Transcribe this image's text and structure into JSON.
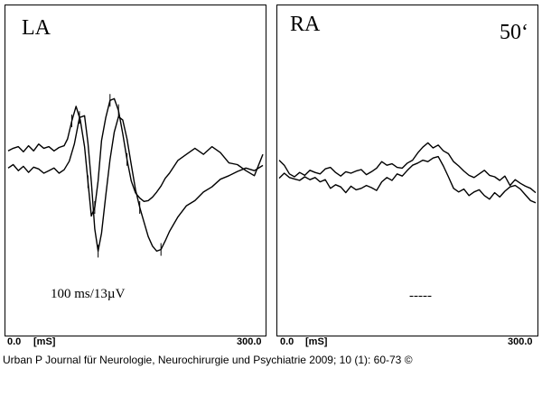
{
  "chart_data": [
    {
      "type": "line",
      "label": "LA",
      "scale_label": "100 ms/13µV",
      "xlabel": "[mS]",
      "xlim": [
        0.0,
        300.0
      ],
      "xtick_labels": [
        "0.0",
        "300.0"
      ],
      "grid": false,
      "series": [
        {
          "x": [
            0,
            6,
            12,
            18,
            24,
            30,
            36,
            42,
            48,
            54,
            60,
            66,
            70,
            75,
            80,
            85,
            90,
            94,
            98,
            102,
            106,
            110,
            115,
            120,
            125,
            130,
            135,
            140,
            145,
            150,
            155,
            160,
            165,
            170,
            175,
            180,
            185,
            190,
            200,
            210,
            220,
            230,
            240,
            250,
            260,
            270,
            280,
            290,
            300
          ],
          "y": [
            2.6,
            2.9,
            3.1,
            2.5,
            3.2,
            2.6,
            3.4,
            2.9,
            3.1,
            2.6,
            3.0,
            3.2,
            4.0,
            6.1,
            7.8,
            6.2,
            3.1,
            -1.0,
            -5.0,
            -4.0,
            -0.9,
            3.8,
            6.5,
            8.5,
            8.7,
            7.3,
            4.6,
            1.6,
            -0.9,
            -2.3,
            -2.9,
            -3.3,
            -3.2,
            -2.8,
            -2.2,
            -1.5,
            -0.6,
            0.0,
            1.5,
            2.2,
            2.9,
            2.2,
            3.1,
            2.4,
            1.2,
            1.0,
            0.3,
            -0.3,
            2.2
          ]
        },
        {
          "x": [
            0,
            6,
            12,
            18,
            24,
            30,
            36,
            42,
            48,
            54,
            60,
            66,
            72,
            78,
            84,
            90,
            94,
            98,
            102,
            106,
            110,
            115,
            120,
            125,
            130,
            135,
            140,
            145,
            150,
            155,
            160,
            165,
            170,
            175,
            180,
            185,
            190,
            200,
            210,
            220,
            230,
            240,
            250,
            260,
            270,
            280,
            290,
            300
          ],
          "y": [
            0.6,
            1.0,
            0.3,
            0.8,
            0.1,
            0.7,
            0.5,
            0.0,
            0.3,
            0.6,
            0.0,
            0.4,
            1.4,
            3.4,
            6.5,
            6.7,
            3.5,
            -1.0,
            -6.5,
            -9.1,
            -7.0,
            -2.6,
            1.6,
            4.8,
            6.6,
            6.2,
            4.0,
            1.0,
            -1.9,
            -4.0,
            -5.7,
            -7.4,
            -8.5,
            -9.1,
            -8.9,
            -7.9,
            -6.8,
            -5.1,
            -3.8,
            -3.2,
            -2.2,
            -1.6,
            -0.7,
            -0.3,
            0.2,
            0.6,
            0.3,
            0.9
          ]
        }
      ]
    },
    {
      "type": "line",
      "label": "RA",
      "time_label": "50‘",
      "scale_label": "-----",
      "xlabel": "[mS]",
      "xlim": [
        0.0,
        300.0
      ],
      "xtick_labels": [
        "0.0",
        "300.0"
      ],
      "grid": false,
      "series": [
        {
          "x": [
            0,
            6,
            12,
            18,
            24,
            30,
            36,
            42,
            48,
            54,
            60,
            66,
            72,
            78,
            84,
            90,
            96,
            102,
            108,
            114,
            120,
            126,
            132,
            138,
            144,
            150,
            156,
            162,
            168,
            174,
            180,
            186,
            192,
            198,
            204,
            210,
            216,
            222,
            228,
            234,
            240,
            246,
            252,
            258,
            264,
            270,
            276,
            282,
            288,
            294,
            300
          ],
          "y": [
            3.3,
            2.6,
            1.4,
            1.0,
            1.6,
            1.2,
            1.9,
            1.6,
            1.4,
            2.1,
            2.3,
            1.6,
            1.1,
            1.7,
            1.5,
            1.8,
            2.0,
            1.3,
            1.7,
            2.2,
            3.1,
            2.6,
            2.8,
            2.3,
            2.2,
            2.9,
            3.3,
            4.3,
            5.1,
            5.7,
            5.0,
            5.4,
            4.6,
            4.2,
            3.1,
            2.5,
            1.8,
            1.2,
            0.9,
            1.4,
            1.9,
            1.2,
            1.0,
            0.5,
            1.1,
            -0.2,
            0.6,
            0.1,
            -0.3,
            -0.6,
            -1.2
          ]
        },
        {
          "x": [
            0,
            6,
            12,
            18,
            24,
            30,
            36,
            42,
            48,
            54,
            60,
            66,
            72,
            78,
            84,
            90,
            96,
            102,
            108,
            114,
            120,
            126,
            132,
            138,
            144,
            150,
            156,
            162,
            168,
            174,
            180,
            186,
            192,
            198,
            204,
            210,
            216,
            222,
            228,
            234,
            240,
            246,
            252,
            258,
            264,
            270,
            276,
            282,
            288,
            294,
            300
          ],
          "y": [
            0.8,
            1.5,
            0.9,
            0.7,
            0.5,
            1.0,
            0.6,
            0.9,
            0.3,
            0.6,
            -0.6,
            -0.1,
            -0.4,
            -1.2,
            -0.3,
            -0.8,
            -0.6,
            -0.2,
            -0.5,
            -0.9,
            0.3,
            0.9,
            0.5,
            1.4,
            1.1,
            1.9,
            2.6,
            2.9,
            3.3,
            3.1,
            3.6,
            3.8,
            2.5,
            1.0,
            -0.6,
            -1.1,
            -0.7,
            -1.6,
            -1.1,
            -0.8,
            -1.6,
            -2.1,
            -1.2,
            -1.8,
            -1.0,
            -0.4,
            -0.2,
            -0.7,
            -1.5,
            -2.3,
            -2.6
          ]
        }
      ]
    }
  ],
  "figure": {
    "citation": "Urban P Journal für Neurologie, Neurochirurgie und Psychiatrie 2009; 10 (1): 60-73 ©"
  },
  "colors": {
    "trace": "#000000",
    "background": "#ffffff"
  }
}
